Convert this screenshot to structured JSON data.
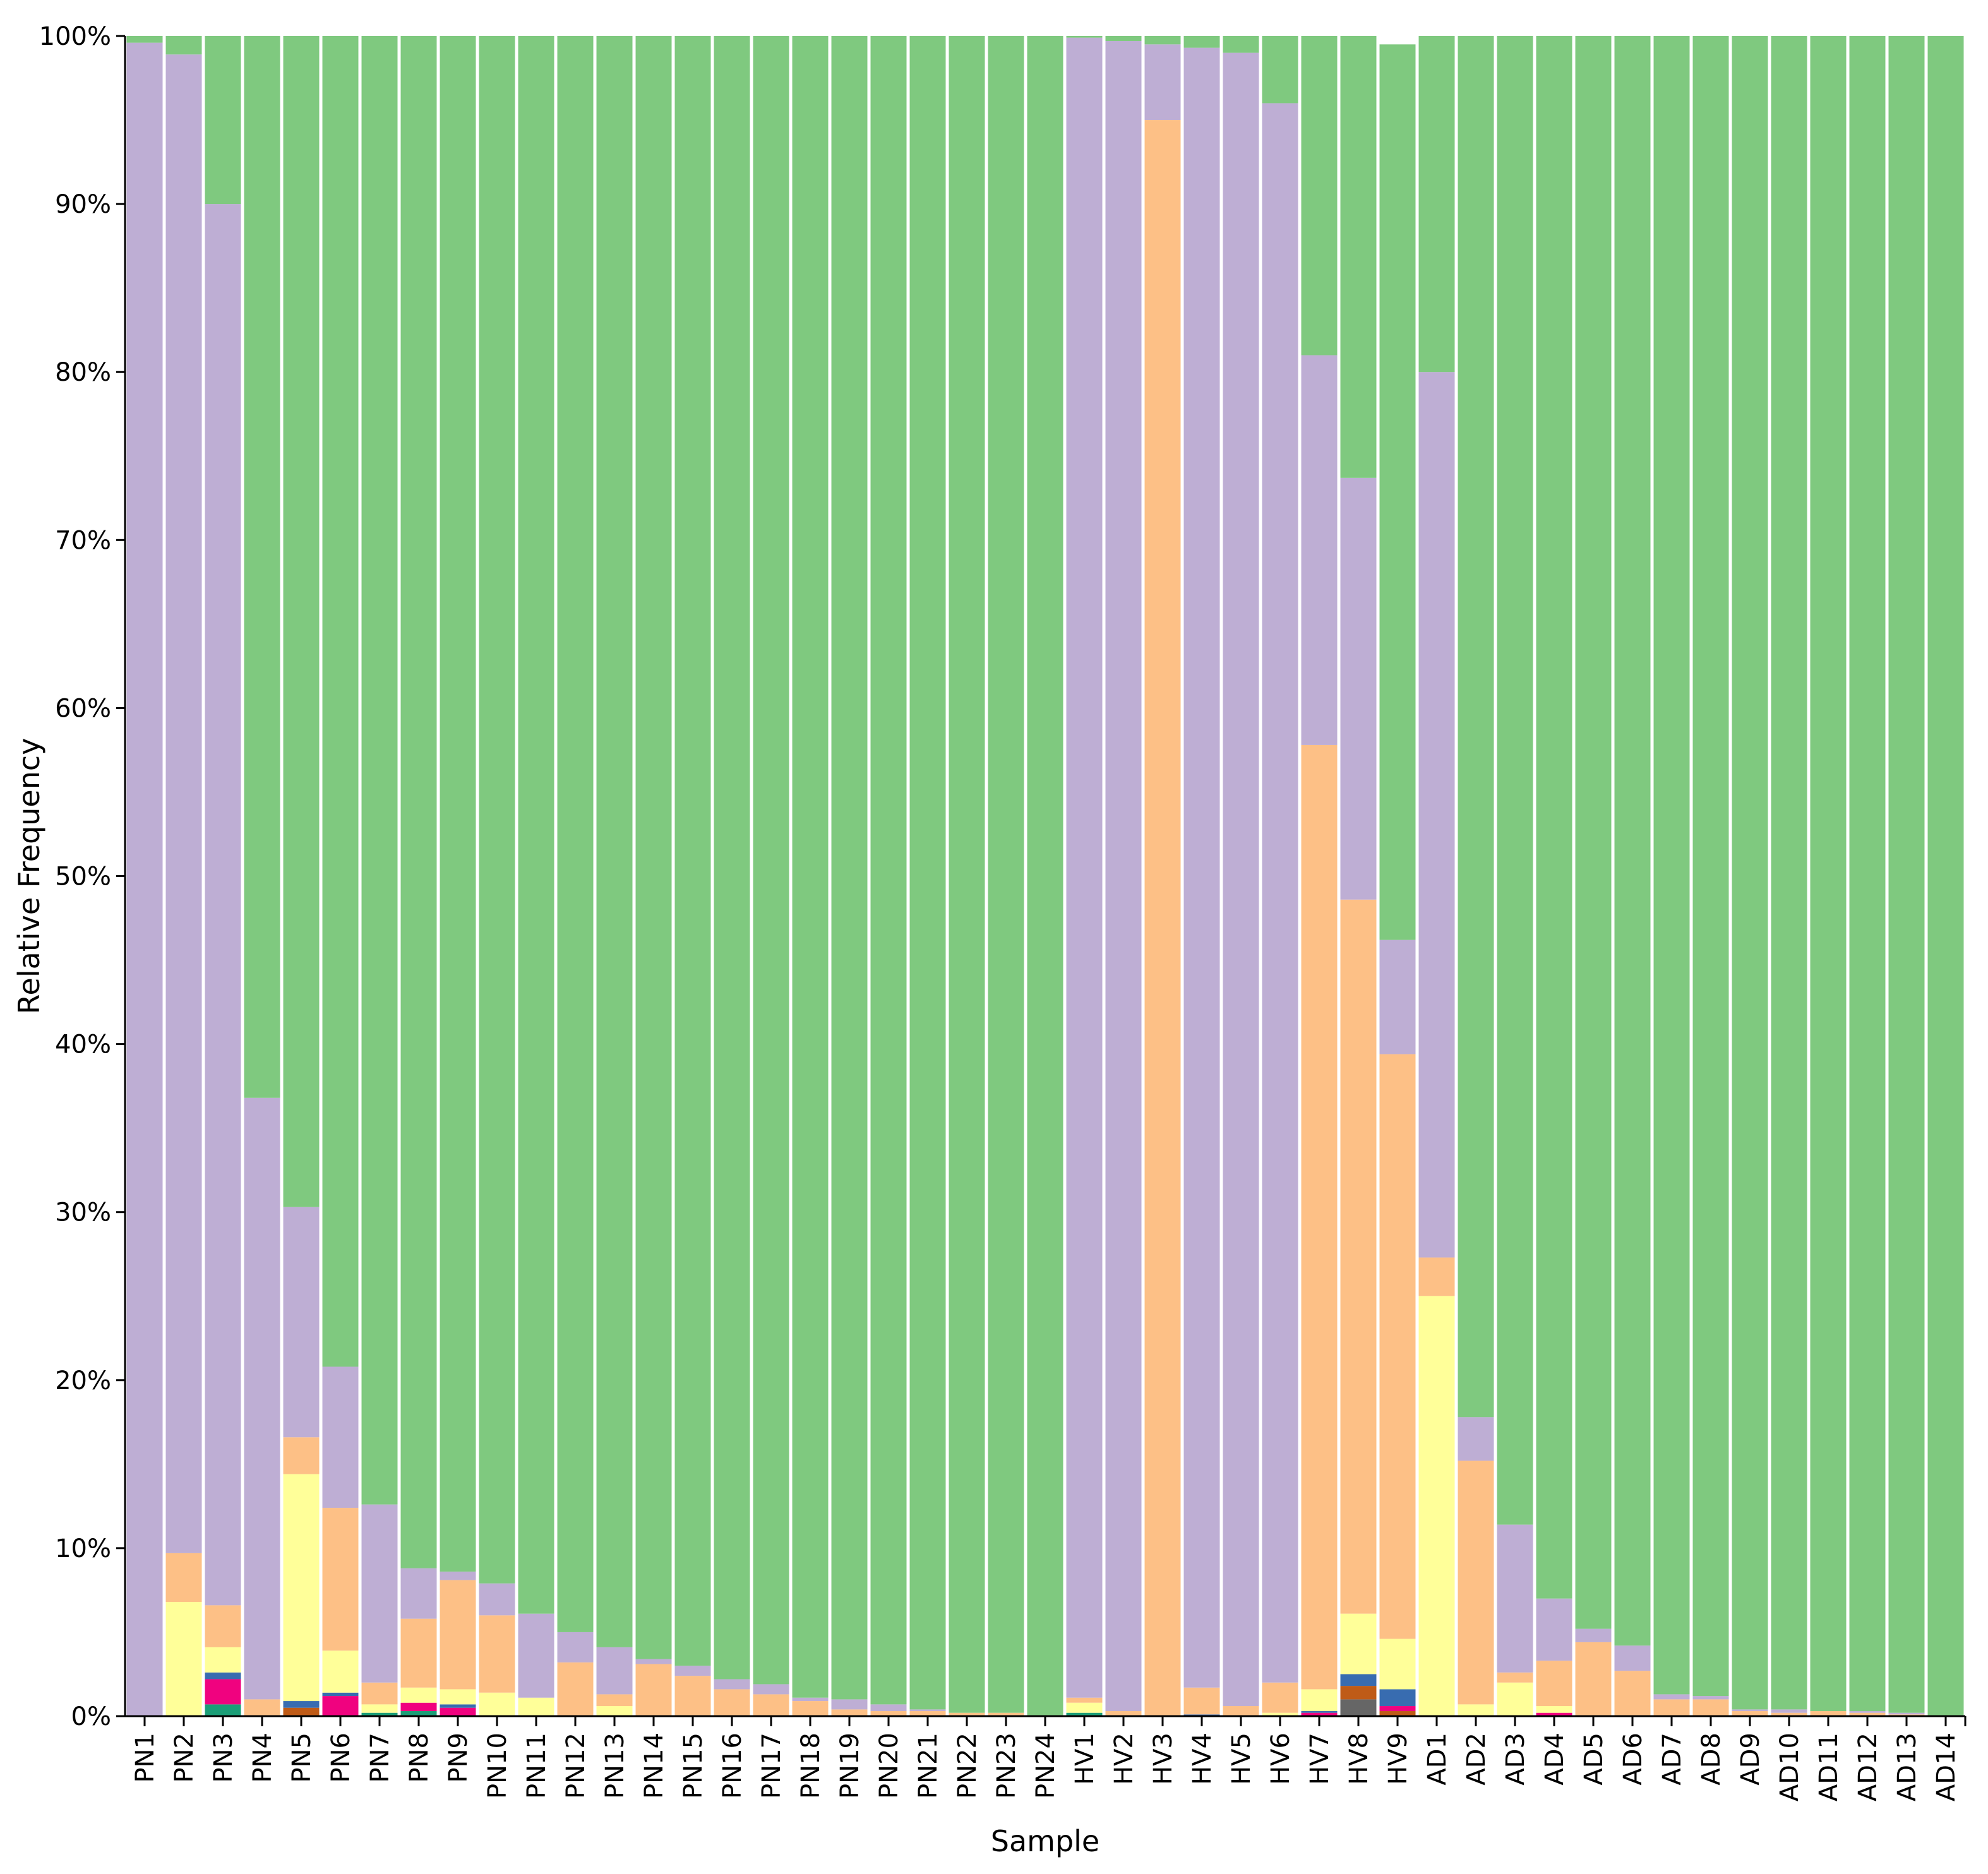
{
  "chart_data": {
    "type": "bar",
    "stacked": true,
    "normalized": true,
    "title": "",
    "xlabel": "Sample",
    "ylabel": "Relative Frequency",
    "ylim": [
      0,
      100
    ],
    "yticks": [
      "0%",
      "10%",
      "20%",
      "30%",
      "40%",
      "50%",
      "60%",
      "70%",
      "80%",
      "90%",
      "100%"
    ],
    "grid": false,
    "legend": "none",
    "categories": [
      "PN1",
      "PN2",
      "PN3",
      "PN4",
      "PN5",
      "PN6",
      "PN7",
      "PN8",
      "PN9",
      "PN10",
      "PN11",
      "PN12",
      "PN13",
      "PN14",
      "PN15",
      "PN16",
      "PN17",
      "PN18",
      "PN19",
      "PN20",
      "PN21",
      "PN22",
      "PN23",
      "PN24",
      "HV1",
      "HV2",
      "HV3",
      "HV4",
      "HV5",
      "HV6",
      "HV7",
      "HV8",
      "HV9",
      "AD1",
      "AD2",
      "AD3",
      "AD4",
      "AD5",
      "AD6",
      "AD7",
      "AD8",
      "AD9",
      "AD10",
      "AD11",
      "AD12",
      "AD13",
      "AD14"
    ],
    "series": [
      {
        "color": "#666666",
        "values": [
          0,
          0,
          0,
          0,
          0,
          0,
          0,
          0,
          0,
          0,
          0,
          0,
          0,
          0,
          0,
          0,
          0,
          0,
          0,
          0,
          0,
          0,
          0,
          0,
          0,
          0,
          0,
          0,
          0,
          0,
          0,
          1.0,
          0,
          0,
          0,
          0,
          0,
          0,
          0,
          0,
          0,
          0,
          0,
          0,
          0,
          0,
          0
        ]
      },
      {
        "color": "#1b9e77",
        "values": [
          0,
          0,
          0.7,
          0,
          0,
          0,
          0.2,
          0.3,
          0,
          0,
          0,
          0,
          0,
          0,
          0,
          0,
          0,
          0,
          0,
          0,
          0,
          0,
          0,
          0,
          0.2,
          0,
          0,
          0,
          0,
          0,
          0,
          0,
          0,
          0,
          0,
          0,
          0,
          0,
          0,
          0,
          0,
          0,
          0,
          0,
          0,
          0,
          0
        ]
      },
      {
        "color": "#bf5b17",
        "values": [
          0,
          0,
          0,
          0,
          0.5,
          0,
          0,
          0,
          0,
          0,
          0,
          0,
          0,
          0,
          0,
          0,
          0,
          0,
          0,
          0,
          0,
          0,
          0,
          0,
          0,
          0,
          0,
          0,
          0,
          0,
          0,
          0.8,
          0.3,
          0,
          0,
          0,
          0,
          0,
          0,
          0,
          0,
          0,
          0,
          0,
          0,
          0,
          0
        ]
      },
      {
        "color": "#f0027f",
        "values": [
          0,
          0,
          1.5,
          0,
          0,
          1.2,
          0,
          0.5,
          0.5,
          0,
          0,
          0,
          0,
          0,
          0,
          0,
          0,
          0,
          0,
          0,
          0,
          0,
          0,
          0,
          0,
          0,
          0,
          0,
          0,
          0,
          0.2,
          0,
          0.3,
          0,
          0,
          0,
          0.2,
          0,
          0,
          0,
          0,
          0,
          0,
          0,
          0,
          0,
          0
        ]
      },
      {
        "color": "#386cb0",
        "values": [
          0,
          0,
          0.4,
          0,
          0.4,
          0.2,
          0,
          0,
          0.2,
          0,
          0,
          0,
          0,
          0,
          0,
          0,
          0,
          0,
          0,
          0,
          0,
          0,
          0,
          0,
          0,
          0,
          0,
          0.1,
          0,
          0,
          0.1,
          0.7,
          1.0,
          0,
          0,
          0,
          0,
          0,
          0,
          0,
          0,
          0,
          0,
          0,
          0,
          0,
          0
        ]
      },
      {
        "color": "#ffff99",
        "values": [
          0,
          6.8,
          1.5,
          0,
          13.5,
          2.5,
          0.5,
          0.9,
          0.9,
          1.4,
          1.1,
          0,
          0.6,
          0,
          0,
          0,
          0,
          0,
          0,
          0,
          0,
          0,
          0,
          0,
          0.6,
          0,
          0,
          0,
          0,
          0.2,
          1.3,
          3.6,
          3.0,
          25.0,
          0.7,
          2.0,
          0.4,
          0,
          0,
          0,
          0,
          0,
          0,
          0,
          0,
          0,
          0
        ]
      },
      {
        "color": "#fdc086",
        "values": [
          0,
          2.9,
          2.5,
          1.0,
          2.2,
          8.5,
          1.3,
          4.1,
          6.5,
          4.6,
          0,
          3.2,
          0.7,
          3.1,
          2.4,
          1.6,
          1.3,
          0.9,
          0.4,
          0.3,
          0.3,
          0.2,
          0.2,
          0,
          0.3,
          0.3,
          95.0,
          1.6,
          0.6,
          1.8,
          56.2,
          42.5,
          34.8,
          2.3,
          14.5,
          0.6,
          2.7,
          4.4,
          2.7,
          1.0,
          1.0,
          0.3,
          0.2,
          0.3,
          0.2,
          0.1,
          0
        ]
      },
      {
        "color": "#beaed4",
        "values": [
          99.6,
          89.2,
          83.4,
          35.8,
          13.7,
          8.4,
          10.6,
          3.0,
          0.5,
          1.9,
          5.0,
          1.8,
          2.8,
          0.3,
          0.6,
          0.6,
          0.6,
          0.2,
          0.6,
          0.4,
          0.1,
          0,
          0,
          0,
          98.8,
          99.4,
          4.5,
          97.6,
          98.4,
          94.0,
          23.2,
          25.1,
          6.8,
          52.7,
          2.6,
          8.8,
          3.7,
          0.8,
          1.5,
          0.3,
          0.2,
          0.1,
          0.2,
          0,
          0.1,
          0.1,
          0
        ]
      },
      {
        "color": "#7fc97f",
        "values": [
          0.4,
          1.1,
          10.0,
          63.2,
          69.7,
          79.2,
          87.4,
          91.2,
          91.4,
          92.1,
          93.9,
          95.0,
          95.9,
          96.6,
          97.0,
          97.8,
          98.1,
          98.9,
          99.0,
          99.3,
          99.6,
          99.8,
          99.8,
          100.0,
          0.1,
          0.3,
          0.5,
          0.7,
          1.0,
          4.0,
          19.0,
          26.3,
          53.3,
          20.0,
          82.2,
          88.6,
          93.0,
          94.8,
          95.8,
          98.7,
          98.8,
          99.6,
          99.6,
          99.7,
          99.7,
          99.8,
          100.0
        ]
      }
    ]
  }
}
